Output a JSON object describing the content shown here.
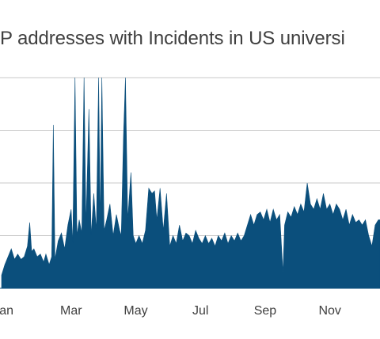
{
  "chart_data": {
    "type": "area",
    "title": "P addresses with Incidents in US universi",
    "xlabel": "",
    "ylabel": "",
    "x_tick_labels": [
      "an",
      "Mar",
      "May",
      "Jul",
      "Sep",
      "Nov"
    ],
    "x_tick_months": [
      1,
      3,
      5,
      7,
      9,
      11
    ],
    "ylim": [
      0,
      4
    ],
    "y_gridlines": [
      1,
      2,
      3,
      4
    ],
    "grid": true,
    "legend": "none",
    "x_range_months": [
      0.85,
      12.55
    ],
    "series": [
      {
        "color": "#0b4f7c",
        "points": [
          [
            0.85,
            0.25
          ],
          [
            0.95,
            0.45
          ],
          [
            1.05,
            0.6
          ],
          [
            1.15,
            0.75
          ],
          [
            1.25,
            0.55
          ],
          [
            1.35,
            0.65
          ],
          [
            1.45,
            0.55
          ],
          [
            1.55,
            0.6
          ],
          [
            1.65,
            0.8
          ],
          [
            1.72,
            1.25
          ],
          [
            1.78,
            0.7
          ],
          [
            1.85,
            0.75
          ],
          [
            1.95,
            0.6
          ],
          [
            2.05,
            0.65
          ],
          [
            2.15,
            0.5
          ],
          [
            2.22,
            0.65
          ],
          [
            2.32,
            0.45
          ],
          [
            2.4,
            0.6
          ],
          [
            2.45,
            3.1
          ],
          [
            2.5,
            0.55
          ],
          [
            2.6,
            0.9
          ],
          [
            2.7,
            1.05
          ],
          [
            2.8,
            0.75
          ],
          [
            2.9,
            1.2
          ],
          [
            3.0,
            1.5
          ],
          [
            3.05,
            0.85
          ],
          [
            3.12,
            4.0
          ],
          [
            3.18,
            1.0
          ],
          [
            3.25,
            1.3
          ],
          [
            3.33,
            1.05
          ],
          [
            3.4,
            4.0
          ],
          [
            3.46,
            1.2
          ],
          [
            3.55,
            3.4
          ],
          [
            3.62,
            1.0
          ],
          [
            3.7,
            1.8
          ],
          [
            3.78,
            1.1
          ],
          [
            3.85,
            4.0
          ],
          [
            3.9,
            1.2
          ],
          [
            3.95,
            4.0
          ],
          [
            4.02,
            1.1
          ],
          [
            4.1,
            1.3
          ],
          [
            4.2,
            1.6
          ],
          [
            4.3,
            1.0
          ],
          [
            4.4,
            1.4
          ],
          [
            4.5,
            1.1
          ],
          [
            4.55,
            1.0
          ],
          [
            4.62,
            2.9
          ],
          [
            4.68,
            4.0
          ],
          [
            4.75,
            1.3
          ],
          [
            4.85,
            2.2
          ],
          [
            4.92,
            1.0
          ],
          [
            5.0,
            0.85
          ],
          [
            5.1,
            1.0
          ],
          [
            5.2,
            0.85
          ],
          [
            5.3,
            1.1
          ],
          [
            5.4,
            1.9
          ],
          [
            5.5,
            1.8
          ],
          [
            5.58,
            1.85
          ],
          [
            5.65,
            1.3
          ],
          [
            5.75,
            1.9
          ],
          [
            5.85,
            1.1
          ],
          [
            5.95,
            1.8
          ],
          [
            6.05,
            0.8
          ],
          [
            6.15,
            1.0
          ],
          [
            6.25,
            0.85
          ],
          [
            6.35,
            1.2
          ],
          [
            6.45,
            0.9
          ],
          [
            6.55,
            1.05
          ],
          [
            6.65,
            1.0
          ],
          [
            6.75,
            0.85
          ],
          [
            6.85,
            1.1
          ],
          [
            6.95,
            0.95
          ],
          [
            7.05,
            0.85
          ],
          [
            7.15,
            1.0
          ],
          [
            7.25,
            0.85
          ],
          [
            7.35,
            0.95
          ],
          [
            7.45,
            0.8
          ],
          [
            7.55,
            1.0
          ],
          [
            7.65,
            0.9
          ],
          [
            7.75,
            1.05
          ],
          [
            7.85,
            0.85
          ],
          [
            7.95,
            1.0
          ],
          [
            8.05,
            0.9
          ],
          [
            8.15,
            1.05
          ],
          [
            8.25,
            0.9
          ],
          [
            8.35,
            1.0
          ],
          [
            8.45,
            1.2
          ],
          [
            8.55,
            1.4
          ],
          [
            8.65,
            1.2
          ],
          [
            8.75,
            1.4
          ],
          [
            8.85,
            1.45
          ],
          [
            8.95,
            1.3
          ],
          [
            9.05,
            1.5
          ],
          [
            9.15,
            1.25
          ],
          [
            9.25,
            1.5
          ],
          [
            9.35,
            1.3
          ],
          [
            9.45,
            1.4
          ],
          [
            9.55,
            0.3
          ],
          [
            9.6,
            1.2
          ],
          [
            9.7,
            1.45
          ],
          [
            9.8,
            1.35
          ],
          [
            9.9,
            1.55
          ],
          [
            10.0,
            1.4
          ],
          [
            10.1,
            1.6
          ],
          [
            10.2,
            1.45
          ],
          [
            10.3,
            2.0
          ],
          [
            10.4,
            1.6
          ],
          [
            10.5,
            1.5
          ],
          [
            10.6,
            1.7
          ],
          [
            10.7,
            1.5
          ],
          [
            10.8,
            1.8
          ],
          [
            10.9,
            1.5
          ],
          [
            11.0,
            1.6
          ],
          [
            11.1,
            1.4
          ],
          [
            11.2,
            1.6
          ],
          [
            11.3,
            1.5
          ],
          [
            11.4,
            1.3
          ],
          [
            11.5,
            1.5
          ],
          [
            11.6,
            1.2
          ],
          [
            11.7,
            1.4
          ],
          [
            11.8,
            1.25
          ],
          [
            11.9,
            1.3
          ],
          [
            12.0,
            1.2
          ],
          [
            12.1,
            1.3
          ],
          [
            12.2,
            1.0
          ],
          [
            12.3,
            0.8
          ],
          [
            12.4,
            1.2
          ],
          [
            12.5,
            1.3
          ],
          [
            12.55,
            1.3
          ]
        ]
      }
    ]
  }
}
